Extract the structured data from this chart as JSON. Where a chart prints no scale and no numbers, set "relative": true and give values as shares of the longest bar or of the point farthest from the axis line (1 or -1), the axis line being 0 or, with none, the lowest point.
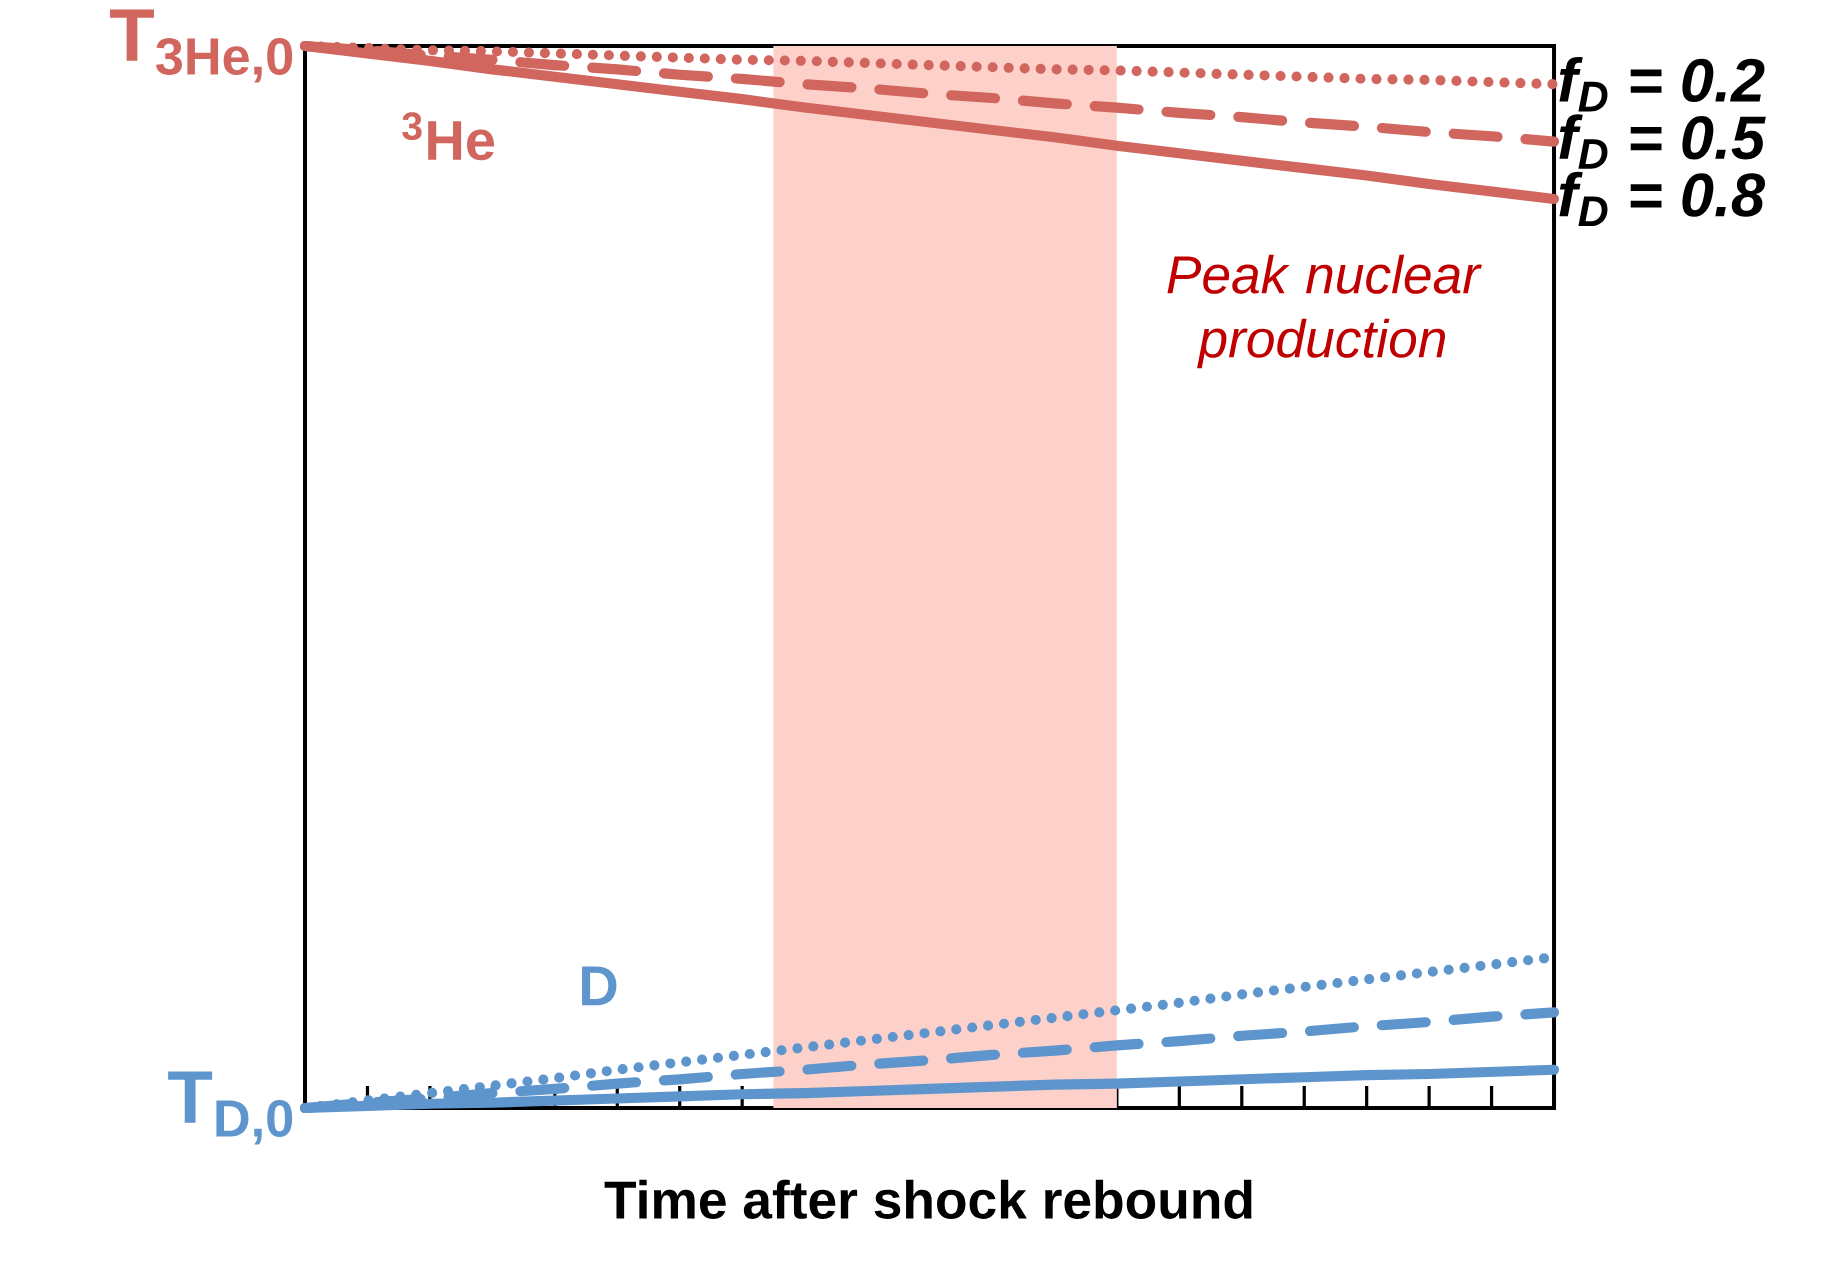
{
  "chart_data": {
    "type": "line",
    "xlabel": "Time after shock rebound",
    "relative": true,
    "categories": [
      null,
      null,
      null,
      null,
      null,
      null,
      null,
      null,
      null,
      null,
      null,
      null,
      null,
      null,
      null,
      null,
      null,
      null,
      null,
      null,
      null
    ],
    "grid": false,
    "marker": "none",
    "series": [
      {
        "name": "f$_{D}$ = 0.2",
        "color": "#d0665e",
        "line_style": "dotted",
        "values": [
          1,
          0.998,
          0.996,
          0.995,
          0.993,
          0.991,
          0.989,
          0.987,
          0.986,
          0.984,
          0.982,
          0.98,
          0.978,
          0.977,
          0.975,
          0.973,
          0.971,
          0.969,
          0.968,
          0.966,
          0.964
        ]
      },
      {
        "name": "f$_{D}$ = 0.5",
        "color": "#d0665e",
        "line_style": "dashed",
        "values": [
          1,
          0.996,
          0.991,
          0.987,
          0.982,
          0.978,
          0.973,
          0.969,
          0.964,
          0.96,
          0.955,
          0.951,
          0.946,
          0.942,
          0.937,
          0.933,
          0.928,
          0.924,
          0.919,
          0.915,
          0.91
        ]
      },
      {
        "name": "f$_{D}$ = 0.8",
        "color": "#d0665e",
        "line_style": "solid",
        "values": [
          1,
          0.993,
          0.986,
          0.978,
          0.971,
          0.964,
          0.957,
          0.95,
          0.942,
          0.935,
          0.928,
          0.921,
          0.914,
          0.906,
          0.899,
          0.892,
          0.885,
          0.878,
          0.87,
          0.863,
          0.856
        ]
      },
      {
        "color": "#5e95cc",
        "line_style": "dotted",
        "values": [
          0,
          0.007,
          0.014,
          0.021,
          0.028,
          0.036,
          0.043,
          0.05,
          0.057,
          0.064,
          0.071,
          0.078,
          0.085,
          0.092,
          0.099,
          0.107,
          0.114,
          0.121,
          0.128,
          0.135,
          0.142
        ]
      },
      {
        "color": "#5e95cc",
        "line_style": "dashed",
        "values": [
          0,
          0.005,
          0.009,
          0.014,
          0.018,
          0.023,
          0.027,
          0.032,
          0.036,
          0.041,
          0.045,
          0.05,
          0.054,
          0.059,
          0.063,
          0.068,
          0.072,
          0.077,
          0.081,
          0.086,
          0.09
        ]
      },
      {
        "color": "#5e95cc",
        "line_style": "solid",
        "values": [
          0,
          0.002,
          0.004,
          0.005,
          0.007,
          0.009,
          0.011,
          0.013,
          0.014,
          0.016,
          0.018,
          0.02,
          0.022,
          0.023,
          0.025,
          0.027,
          0.029,
          0.031,
          0.032,
          0.034,
          0.036
        ]
      }
    ],
    "annotations": [
      "T$_{3He,0}$",
      "T$_{D,0}$",
      "$^{3}$He",
      "D",
      "Peak nuclear production"
    ]
  }
}
